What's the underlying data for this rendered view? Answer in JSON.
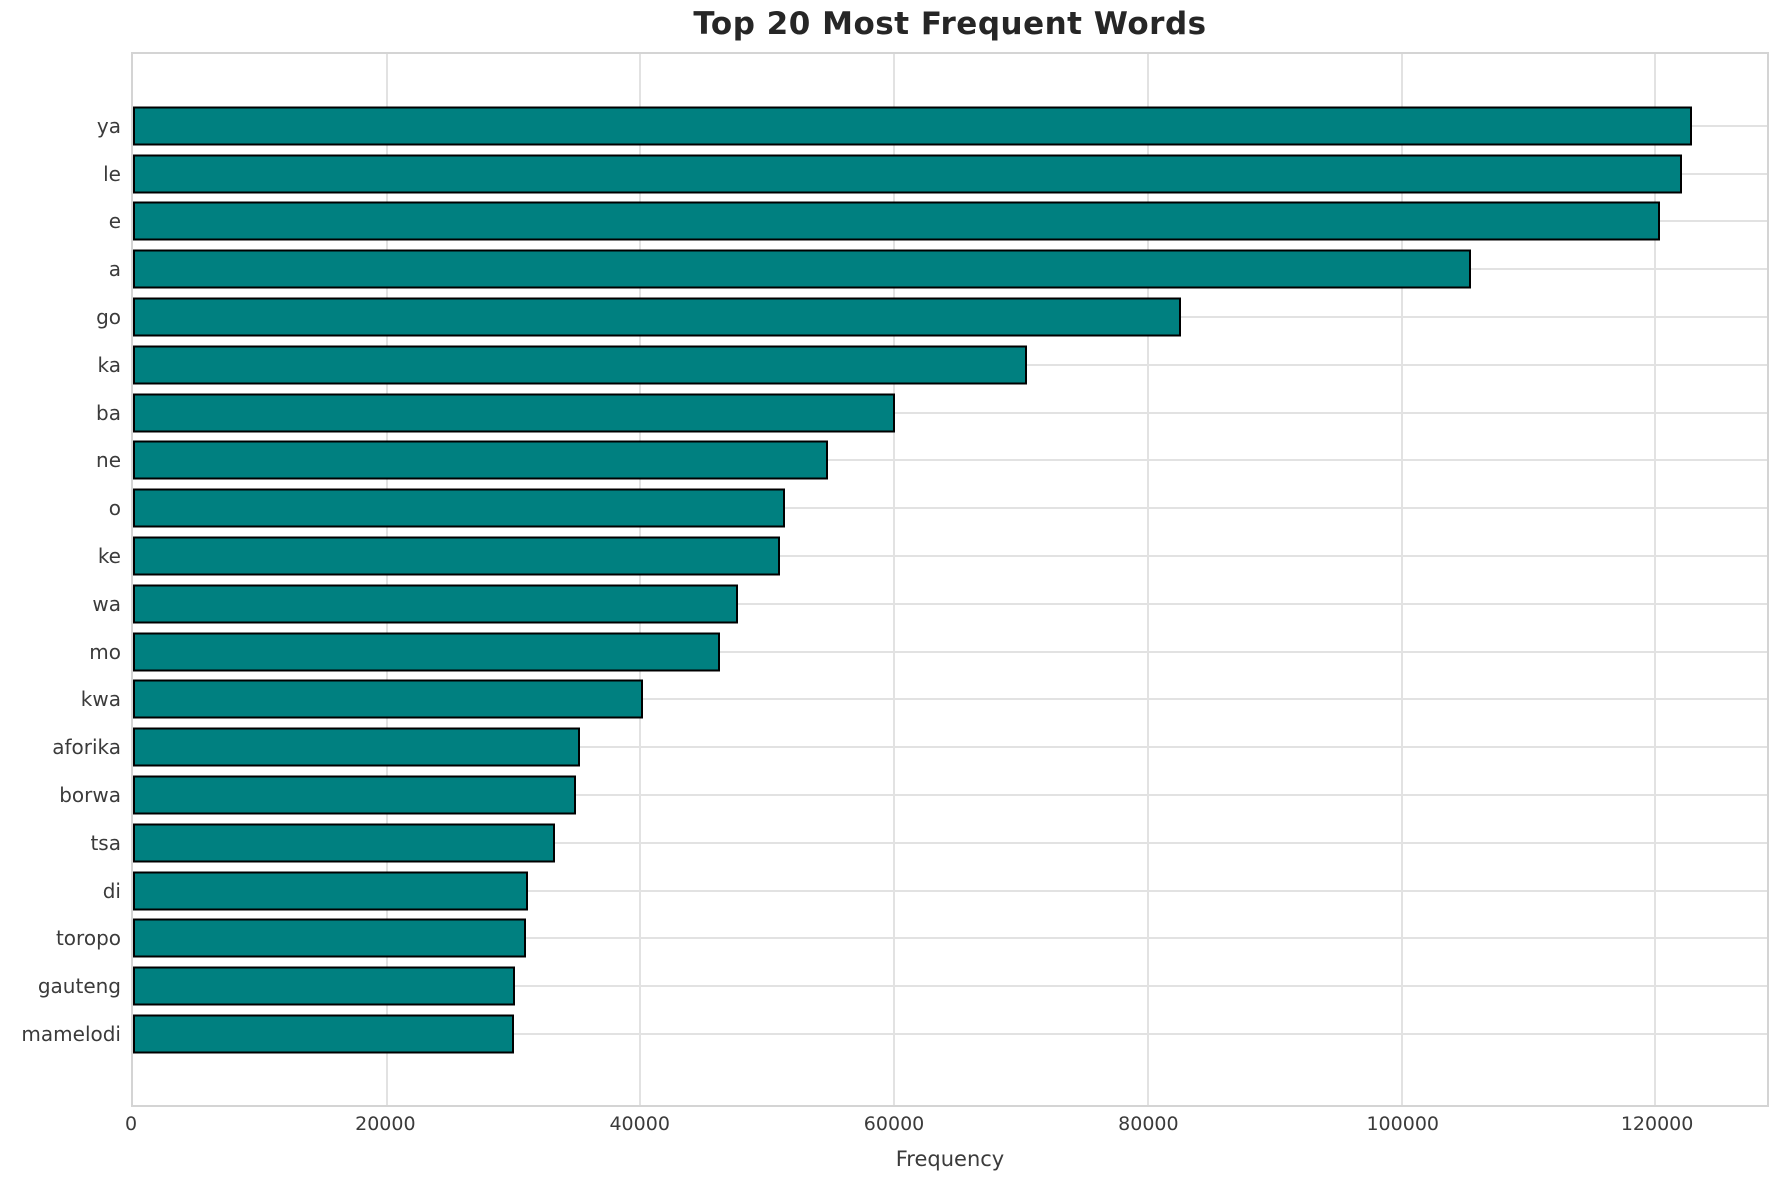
{
  "chart_data": {
    "type": "bar",
    "orientation": "horizontal",
    "title": "Top 20 Most Frequent Words",
    "xlabel": "Frequency",
    "ylabel": "",
    "categories": [
      "ya",
      "le",
      "e",
      "a",
      "go",
      "ka",
      "ba",
      "ne",
      "o",
      "ke",
      "wa",
      "mo",
      "kwa",
      "aforika",
      "borwa",
      "tsa",
      "di",
      "toropo",
      "gauteng",
      "mamelodi"
    ],
    "values": [
      122900,
      122100,
      120400,
      105500,
      82600,
      70500,
      60100,
      54800,
      51400,
      51000,
      47700,
      46300,
      40200,
      35200,
      34900,
      33300,
      31100,
      31000,
      30100,
      30000
    ],
    "xlim": [
      0,
      128800
    ],
    "xticks": [
      0,
      20000,
      40000,
      60000,
      80000,
      100000,
      120000
    ],
    "xtick_labels": [
      "0",
      "20000",
      "40000",
      "60000",
      "80000",
      "100000",
      "120000"
    ],
    "grid": "both",
    "legend": false,
    "colors": {
      "bar_fill": "#008080",
      "bar_edge": "#000000",
      "gridline": "#e2e2e2",
      "spine": "#d4d4d4",
      "title_text": "#262626",
      "tick_text": "#3b3b3b",
      "background": "#ffffff"
    }
  }
}
